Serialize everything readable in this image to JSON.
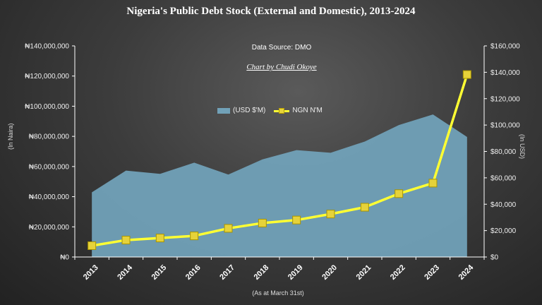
{
  "title": "Nigeria's Public Debt Stock (External and Domestic), 2013-2024",
  "source": "Data Source: DMO",
  "credit": "Chart by Chudi Okoye",
  "chart_data": {
    "type": "area+line",
    "categories": [
      "2013",
      "2014",
      "2015",
      "2016",
      "2017",
      "2018",
      "2019",
      "2020",
      "2021",
      "2022",
      "2023",
      "2024"
    ],
    "series": [
      {
        "name": "(USD $'M)",
        "type": "area",
        "axis": "right",
        "color": "#71a1b8",
        "values": [
          49000,
          65500,
          63000,
          71500,
          62500,
          74000,
          81000,
          79000,
          87500,
          100000,
          108000,
          91000
        ]
      },
      {
        "name": "NGN N'M",
        "type": "line",
        "axis": "left",
        "color": "#ffff33",
        "values": [
          7500000,
          11200000,
          12600000,
          14000000,
          19000000,
          22500000,
          24500000,
          28500000,
          33000000,
          42000000,
          49000000,
          121000000
        ]
      }
    ],
    "y_left": {
      "label": "(In Naira)",
      "min": 0,
      "max": 140000000,
      "ticks": [
        "₦0",
        "₦20,000,000",
        "₦40,000,000",
        "₦60,000,000",
        "₦80,000,000",
        "₦100,000,000",
        "₦120,000,000",
        "₦140,000,000"
      ]
    },
    "y_right": {
      "label": "(In USD)",
      "min": 0,
      "max": 160000,
      "ticks": [
        "$0",
        "$20,000",
        "$40,000",
        "$60,000",
        "$80,000",
        "$100,000",
        "$120,000",
        "$140,000",
        "$160,000"
      ]
    },
    "xlabel": "(As at March 31st)",
    "grid": false,
    "legend": "top-center"
  }
}
